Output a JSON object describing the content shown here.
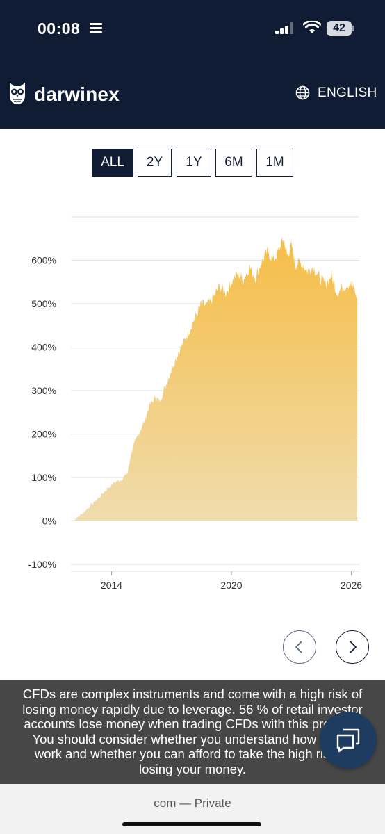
{
  "status_bar": {
    "time": "00:08",
    "battery": "42"
  },
  "header": {
    "brand": "darwinex",
    "brand_icon": "owl-logo-icon",
    "language": "ENGLISH",
    "language_icon": "globe-icon",
    "colors": {
      "background": "#0f1c33",
      "text": "#ffffff"
    }
  },
  "range_selector": {
    "buttons": [
      "ALL",
      "2Y",
      "1Y",
      "6M",
      "1M"
    ],
    "selected": "ALL"
  },
  "chart_data": {
    "type": "area",
    "x_ticks": [
      "2014",
      "2020",
      "2026"
    ],
    "y_ticks": [
      "600%",
      "500%",
      "400%",
      "300%",
      "200%",
      "100%",
      "0%",
      "-100%"
    ],
    "ylim": [
      -100,
      700
    ],
    "xlim": [
      2012.0,
      2026.4
    ],
    "grid": true,
    "colors": {
      "fill_top": "#f5bd45",
      "fill_bottom": "#f0dcae",
      "grid": "#dde3ea"
    },
    "x": [
      2012.05,
      2012.3,
      2012.6,
      2013.0,
      2013.4,
      2013.8,
      2014.2,
      2014.5,
      2014.8,
      2015.0,
      2015.3,
      2015.6,
      2015.9,
      2016.2,
      2016.4,
      2016.7,
      2017.0,
      2017.3,
      2017.6,
      2017.9,
      2018.2,
      2018.5,
      2018.8,
      2019.1,
      2019.4,
      2019.7,
      2020.0,
      2020.3,
      2020.6,
      2020.9,
      2021.2,
      2021.5,
      2021.8,
      2022.1,
      2022.4,
      2022.6,
      2022.8,
      2023.0,
      2023.2,
      2023.5,
      2023.8,
      2024.1,
      2024.4,
      2024.7,
      2025.0,
      2025.3,
      2025.6,
      2025.9,
      2026.1,
      2026.3
    ],
    "y": [
      0,
      8,
      20,
      38,
      55,
      75,
      90,
      95,
      110,
      160,
      195,
      225,
      265,
      285,
      275,
      310,
      350,
      385,
      410,
      440,
      470,
      500,
      495,
      515,
      540,
      525,
      550,
      570,
      555,
      585,
      560,
      595,
      620,
      600,
      625,
      650,
      610,
      635,
      590,
      595,
      575,
      585,
      560,
      545,
      565,
      525,
      540,
      545,
      540,
      510
    ]
  },
  "pager": {
    "prev_icon": "chevron-left-icon",
    "next_icon": "chevron-right-icon"
  },
  "disclaimer": {
    "lines": [
      "CFDs are complex instruments and come with a high risk of",
      "losing money rapidly due to leverage. 56 % of retail investor",
      "accounts lose money when trading CFDs with this provider.",
      "You should consider whether you understand how CFDs",
      "work and whether you can afford to take the high risk of",
      "losing your money."
    ],
    "chat_icon": "chat-icon"
  },
  "browser": {
    "url_text": "com — Private"
  }
}
